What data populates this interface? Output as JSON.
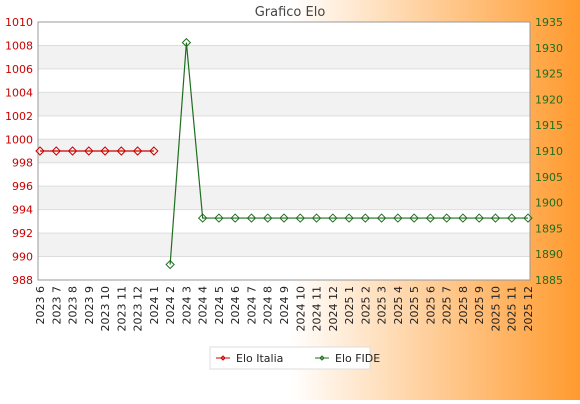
{
  "chart_data": {
    "type": "line",
    "title": "Grafico Elo",
    "categories": [
      "2023 6",
      "2023 7",
      "2023 8",
      "2023 9",
      "2023 10",
      "2023 11",
      "2023 12",
      "2024 1",
      "2024 2",
      "2024 3",
      "2024 4",
      "2024 5",
      "2024 6",
      "2024 7",
      "2024 8",
      "2024 9",
      "2024 10",
      "2024 11",
      "2024 12",
      "2025 1",
      "2025 2",
      "2025 3",
      "2025 4",
      "2025 5",
      "2025 6",
      "2025 7",
      "2025 8",
      "2025 9",
      "2025 10",
      "2025 11",
      "2025 12"
    ],
    "y_left": {
      "min": 988,
      "max": 1010,
      "step": 2,
      "ticks": [
        988,
        990,
        992,
        994,
        996,
        998,
        1000,
        1002,
        1004,
        1006,
        1008,
        1010
      ],
      "color": "#cc0000"
    },
    "y_right": {
      "min": 1885,
      "max": 1935,
      "step": 5,
      "ticks": [
        1885,
        1890,
        1895,
        1900,
        1905,
        1910,
        1915,
        1920,
        1925,
        1930,
        1935
      ],
      "color": "#1f6e1f"
    },
    "series": [
      {
        "name": "Elo Italia",
        "axis": "left",
        "color": "#cc0000",
        "values": [
          999,
          999,
          999,
          999,
          999,
          999,
          999,
          999,
          null,
          null,
          null,
          null,
          null,
          null,
          null,
          null,
          null,
          null,
          null,
          null,
          null,
          null,
          null,
          null,
          null,
          null,
          null,
          null,
          null,
          null,
          null
        ]
      },
      {
        "name": "Elo FIDE",
        "axis": "right",
        "color": "#1f6e1f",
        "values": [
          null,
          null,
          null,
          null,
          null,
          null,
          null,
          null,
          1888,
          1931,
          1897,
          1897,
          1897,
          1897,
          1897,
          1897,
          1897,
          1897,
          1897,
          1897,
          1897,
          1897,
          1897,
          1897,
          1897,
          1897,
          1897,
          1897,
          1897,
          1897,
          1897
        ]
      }
    ],
    "grid": true,
    "legend_position": "bottom-center",
    "background_gradient": [
      "#ffffff",
      "#ff9a2e"
    ]
  }
}
